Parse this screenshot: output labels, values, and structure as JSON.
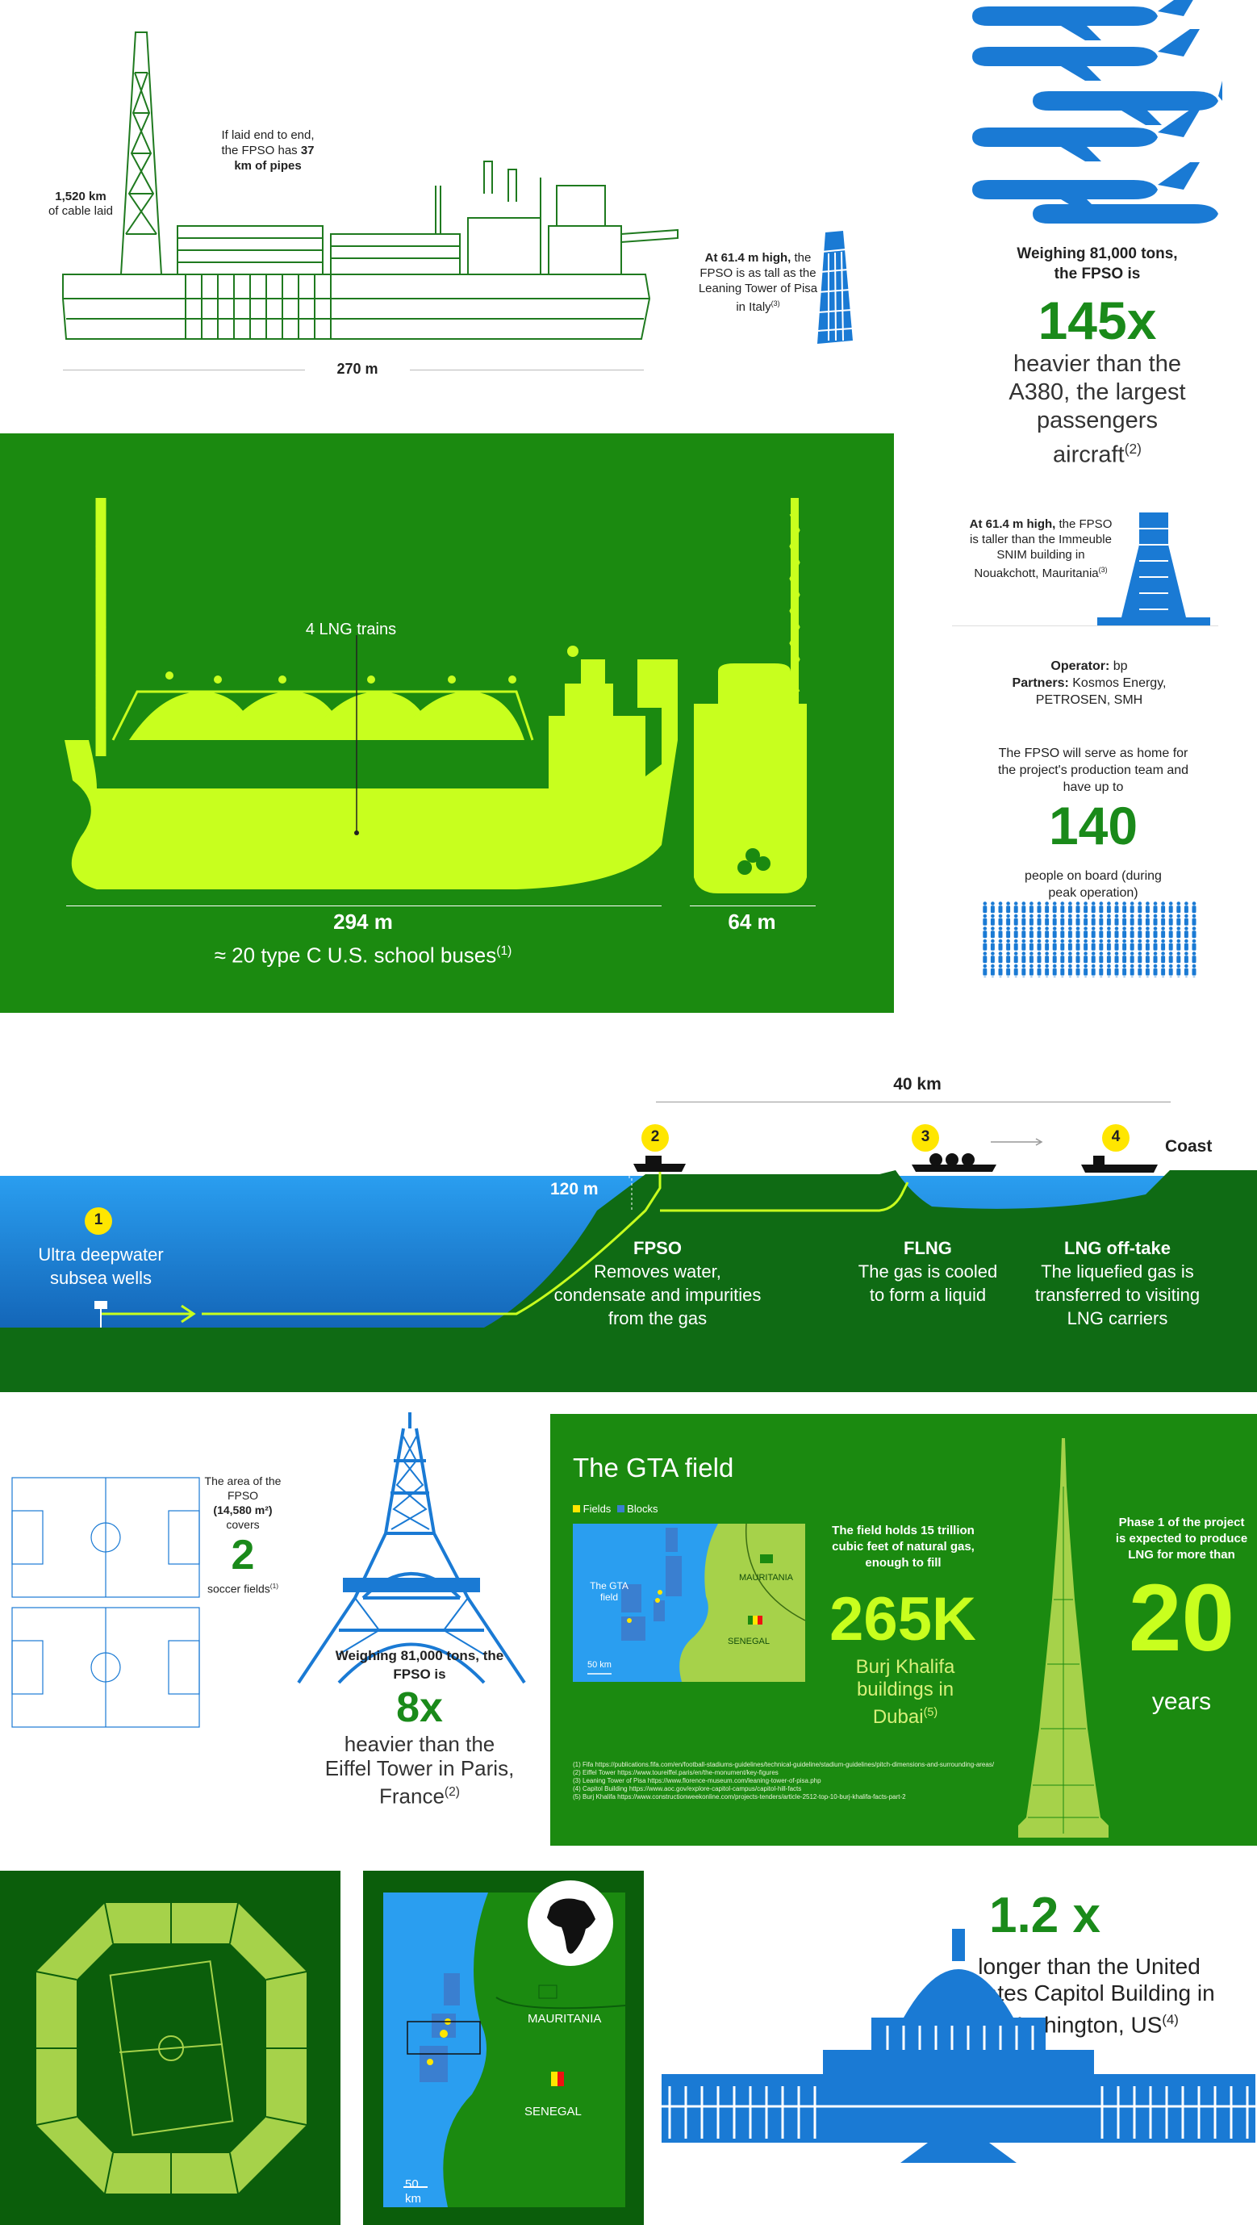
{
  "colors": {
    "dark_green": "#0b5e0b",
    "mid_green": "#1b8a10",
    "lime": "#c8ff1e",
    "blue": "#1a7ad4",
    "sea": "#2196e6",
    "deep_green": "#0f6b14",
    "white": "#ffffff"
  },
  "fpso": {
    "cable_value": "1,520 km",
    "cable_rest": "of cable laid",
    "pipes_pre": "If laid end to end, the FPSO has",
    "pipes_value": "37 km of pipes",
    "length": "270 m",
    "pisa_value": "At 61.4 m high,",
    "pisa_rest": "the FPSO is as tall as the Leaning Tower of Pisa in Italy",
    "pisa_sup": "(3)"
  },
  "a380": {
    "weigh": "Weighing 81,000 tons, the FPSO is",
    "big": "145x",
    "rest": "heavier than the A380, the largest passengers aircraft",
    "sup": "(2)"
  },
  "flng": {
    "trains": "4 LNG trains",
    "length": "294 m",
    "width": "64 m",
    "buses": "≈ 20 type C U.S. school buses",
    "buses_sup": "(1)"
  },
  "snim": {
    "value": "At 61.4 m high,",
    "rest": "the FPSO is taller than the Immeuble SNIM building in Nouakchott, Mauritania",
    "sup": "(3)"
  },
  "operator": {
    "op_label": "Operator:",
    "op_value": "bp",
    "partners_label": "Partners:",
    "partners_value": "Kosmos Energy, PETROSEN, SMH"
  },
  "people": {
    "intro": "The FPSO will serve as home for the project's production team and have up to",
    "big": "140",
    "rest": "people on board (during peak operation)"
  },
  "process": {
    "distance": "40 km",
    "coast": "Coast",
    "depth": "120 m",
    "steps": [
      {
        "num": "1",
        "title": "Ultra deepwater subsea wells",
        "desc": ""
      },
      {
        "num": "2",
        "title": "FPSO",
        "desc": "Removes water, condensate and impurities from the gas"
      },
      {
        "num": "3",
        "title": "FLNG",
        "desc": "The gas is cooled to form a liquid"
      },
      {
        "num": "4",
        "title": "LNG off-take",
        "desc": "The liquefied gas is transferred to visiting LNG carriers"
      }
    ]
  },
  "soccer": {
    "intro": "The area of the FPSO",
    "area": "(14,580 m²)",
    "covers": "covers",
    "big": "2",
    "rest": "soccer fields",
    "sup": "(1)"
  },
  "eiffel": {
    "weigh": "Weighing 81,000 tons, the FPSO is",
    "big": "8x",
    "rest": "heavier than the Eiffel Tower in Paris, France",
    "sup": "(2)"
  },
  "gta": {
    "title": "The GTA field",
    "legend_fields": "Fields",
    "legend_blocks": "Blocks",
    "map_field": "The GTA field",
    "map_mauritania": "MAURITANIA",
    "map_senegal": "SENEGAL",
    "map_scale": "50 km",
    "holds": "The field holds 15 trillion cubic feet of natural gas, enough to fill",
    "big": "265K",
    "rest": "Burj Khalifa buildings in Dubai",
    "sup": "(5)",
    "phase": "Phase 1 of the project is expected to produce LNG for more than",
    "years_big": "20",
    "years": "years",
    "refs": [
      "(1) Fifa https://publications.fifa.com/en/football-stadiums-guidelines/technical-guideline/stadium-guidelines/pitch-dimensions-and-surrounding-areas/",
      "(2) Eiffel Tower https://www.toureiffel.paris/en/the-monument/key-figures",
      "(3) Leaning Tower of Pisa https://www.florence-museum.com/leaning-tower-of-pisa.php",
      "(4) Capitol Building https://www.aoc.gov/explore-capitol-campus/capitol-hill-facts",
      "(5) Burj Khalifa https://www.constructionweekonline.com/projects-tenders/article-2512-top-10-burj-khalifa-facts-part-2"
    ]
  },
  "map2": {
    "mauritania": "MAURITANIA",
    "senegal": "SENEGAL",
    "scale": "50 km"
  },
  "capitol": {
    "big": "1.2 x",
    "rest": "longer than the United States Capitol Building in Washington, US",
    "sup": "(4)"
  }
}
